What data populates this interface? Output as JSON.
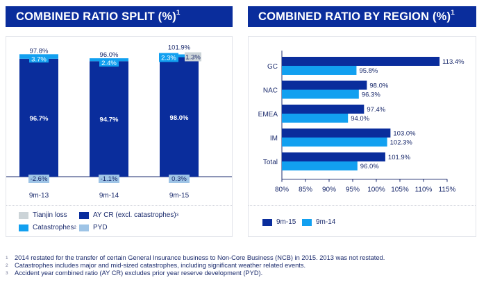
{
  "left_chart": {
    "title": "COMBINED RATIO SPLIT (%)",
    "title_sup": "1"
  },
  "right_chart": {
    "title": "COMBINED RATIO BY REGION (%)",
    "title_sup": "1"
  },
  "colors": {
    "header_bg": "#0a2d9c",
    "ay_cr": "#0a2d9c",
    "catastrophes": "#12a0f0",
    "tianjin": "#ccd4d8",
    "pyd": "#9ec4e6",
    "s9m15": "#0a2d9c",
    "s9m14": "#12a0f0"
  },
  "chart_data": [
    {
      "type": "bar",
      "stacked": true,
      "title": "COMBINED RATIO SPLIT (%)",
      "categories": [
        "9m-13",
        "9m-14",
        "9m-15"
      ],
      "series": [
        {
          "name": "AY CR (excl. catastrophes)",
          "values": [
            96.7,
            94.7,
            98.0
          ],
          "labels": [
            "96.7%",
            "94.7%",
            "98.0%"
          ]
        },
        {
          "name": "Catastrophes",
          "values": [
            3.7,
            2.4,
            2.3
          ],
          "labels": [
            "3.7%",
            "2.4%",
            "2.3%"
          ]
        },
        {
          "name": "Tianjin loss",
          "values": [
            0,
            0,
            1.3
          ],
          "labels": [
            "",
            "",
            "1.3%"
          ]
        },
        {
          "name": "PYD",
          "values": [
            -2.6,
            -1.1,
            0.3
          ],
          "labels": [
            "-2.6%",
            "-1.1%",
            "0.3%"
          ]
        }
      ],
      "totals": [
        "97.8%",
        "96.0%",
        "101.9%"
      ],
      "legend": [
        {
          "key": "tianjin",
          "label": "Tianjin loss",
          "sup": ""
        },
        {
          "key": "ay_cr",
          "label": "AY CR (excl. catastrophes)",
          "sup": "3"
        },
        {
          "key": "catastrophes",
          "label": "Catastrophes",
          "sup": "2"
        },
        {
          "key": "pyd",
          "label": "PYD",
          "sup": ""
        }
      ],
      "legend_position": "bottom"
    },
    {
      "type": "bar",
      "orientation": "horizontal",
      "title": "COMBINED RATIO BY REGION (%)",
      "categories": [
        "GC",
        "NAC",
        "EMEA",
        "IM",
        "Total"
      ],
      "series": [
        {
          "name": "9m-15",
          "values": [
            113.4,
            98.0,
            97.4,
            103.0,
            101.9
          ],
          "labels": [
            "113.4%",
            "98.0%",
            "97.4%",
            "103.0%",
            "101.9%"
          ]
        },
        {
          "name": "9m-14",
          "values": [
            95.8,
            96.3,
            94.0,
            102.3,
            96.0
          ],
          "labels": [
            "95.8%",
            "96.3%",
            "94.0%",
            "102.3%",
            "96.0%"
          ]
        }
      ],
      "xlim": [
        80,
        115
      ],
      "xticks": [
        "80%",
        "85%",
        "90%",
        "95%",
        "100%",
        "105%",
        "110%",
        "115%"
      ],
      "xtick_values": [
        80,
        85,
        90,
        95,
        100,
        105,
        110,
        115
      ],
      "legend": [
        {
          "key": "s9m15",
          "label": "9m-15"
        },
        {
          "key": "s9m14",
          "label": "9m-14"
        }
      ],
      "legend_position": "bottom-left"
    }
  ],
  "footnotes": [
    {
      "num": "1",
      "text": "2014 restated for the transfer of certain General Insurance business to Non-Core Business (NCB) in 2015. 2013 was not restated."
    },
    {
      "num": "2",
      "text": "Catastrophes includes major and mid-sized catastrophes, including significant weather related events."
    },
    {
      "num": "3",
      "text": "Accident year combined ratio (AY CR) excludes prior year reserve development (PYD)."
    }
  ]
}
